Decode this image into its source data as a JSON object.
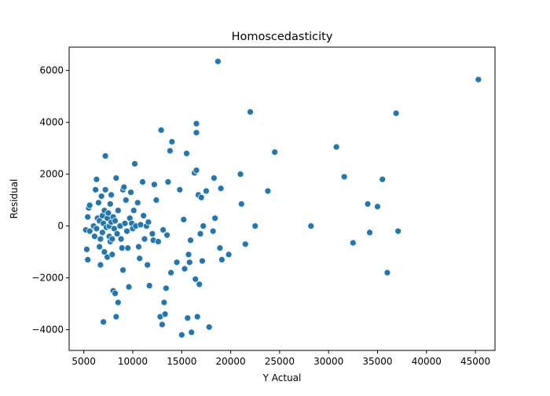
{
  "chart_data": {
    "type": "scatter",
    "title": "Homoscedasticity",
    "xlabel": "Y Actual",
    "ylabel": "Residual",
    "xlim": [
      3500,
      47000
    ],
    "ylim": [
      -4800,
      6900
    ],
    "xticks": [
      5000,
      10000,
      15000,
      20000,
      25000,
      30000,
      35000,
      40000,
      45000
    ],
    "yticks": [
      -4000,
      -2000,
      0,
      2000,
      4000,
      6000
    ],
    "grid": false,
    "legend": "none",
    "marker_color": "#1f77b4",
    "points": [
      [
        5200,
        -150
      ],
      [
        5300,
        -900
      ],
      [
        5400,
        -1300
      ],
      [
        5400,
        350
      ],
      [
        5500,
        700
      ],
      [
        5600,
        800
      ],
      [
        5600,
        -200
      ],
      [
        6000,
        0
      ],
      [
        6100,
        -400
      ],
      [
        6200,
        1400
      ],
      [
        6300,
        1800
      ],
      [
        6300,
        -100
      ],
      [
        6400,
        300
      ],
      [
        6500,
        900
      ],
      [
        6600,
        200
      ],
      [
        6600,
        -800
      ],
      [
        6700,
        -1500
      ],
      [
        6700,
        -500
      ],
      [
        6800,
        1150
      ],
      [
        6900,
        400
      ],
      [
        6900,
        -250
      ],
      [
        7000,
        -3700
      ],
      [
        7000,
        100
      ],
      [
        7100,
        600
      ],
      [
        7100,
        -1000
      ],
      [
        7200,
        1400
      ],
      [
        7200,
        2700
      ],
      [
        7300,
        -50
      ],
      [
        7400,
        300
      ],
      [
        7400,
        -1200
      ],
      [
        7500,
        500
      ],
      [
        7600,
        0
      ],
      [
        7600,
        -400
      ],
      [
        7700,
        850
      ],
      [
        7700,
        -600
      ],
      [
        7800,
        150
      ],
      [
        7800,
        1200
      ],
      [
        7900,
        -500
      ],
      [
        7900,
        -1100
      ],
      [
        8000,
        350
      ],
      [
        8000,
        -2500
      ],
      [
        8100,
        -100
      ],
      [
        8200,
        200
      ],
      [
        8200,
        -2600
      ],
      [
        8300,
        1850
      ],
      [
        8300,
        -3500
      ],
      [
        8400,
        -300
      ],
      [
        8500,
        600
      ],
      [
        8500,
        -2950
      ],
      [
        8700,
        0
      ],
      [
        8800,
        -500
      ],
      [
        8900,
        -850
      ],
      [
        9000,
        -1700
      ],
      [
        9000,
        1400
      ],
      [
        9100,
        1500
      ],
      [
        9200,
        100
      ],
      [
        9300,
        1000
      ],
      [
        9400,
        -200
      ],
      [
        9500,
        -850
      ],
      [
        9600,
        -2350
      ],
      [
        9700,
        300
      ],
      [
        9800,
        1300
      ],
      [
        9900,
        100
      ],
      [
        10000,
        -100
      ],
      [
        10100,
        600
      ],
      [
        10200,
        2400
      ],
      [
        10300,
        0
      ],
      [
        10500,
        900
      ],
      [
        10600,
        -800
      ],
      [
        10700,
        -1250
      ],
      [
        10800,
        50
      ],
      [
        11000,
        1700
      ],
      [
        11100,
        400
      ],
      [
        11200,
        -500
      ],
      [
        11400,
        0
      ],
      [
        11500,
        -1500
      ],
      [
        11600,
        150
      ],
      [
        11700,
        -2300
      ],
      [
        12000,
        -300
      ],
      [
        12100,
        -550
      ],
      [
        12200,
        1600
      ],
      [
        12400,
        1000
      ],
      [
        12600,
        -600
      ],
      [
        12800,
        -3500
      ],
      [
        12900,
        3700
      ],
      [
        13000,
        -3800
      ],
      [
        13100,
        -150
      ],
      [
        13200,
        -2950
      ],
      [
        13300,
        -3400
      ],
      [
        13400,
        -2400
      ],
      [
        13500,
        -350
      ],
      [
        13600,
        1700
      ],
      [
        13800,
        2900
      ],
      [
        13900,
        -1800
      ],
      [
        14000,
        3250
      ],
      [
        14500,
        -1400
      ],
      [
        14800,
        1400
      ],
      [
        15000,
        -4200
      ],
      [
        15200,
        250
      ],
      [
        15300,
        -1650
      ],
      [
        15500,
        2800
      ],
      [
        15600,
        -3550
      ],
      [
        15700,
        -1100
      ],
      [
        15800,
        -1400
      ],
      [
        15900,
        -550
      ],
      [
        16000,
        -4100
      ],
      [
        16300,
        2050
      ],
      [
        16400,
        -2050
      ],
      [
        16500,
        3600
      ],
      [
        16500,
        2150
      ],
      [
        16500,
        3950
      ],
      [
        16600,
        -3500
      ],
      [
        16700,
        1200
      ],
      [
        16800,
        -2250
      ],
      [
        16900,
        -300
      ],
      [
        17000,
        1100
      ],
      [
        17100,
        -1350
      ],
      [
        17200,
        0
      ],
      [
        17500,
        1350
      ],
      [
        17800,
        -3900
      ],
      [
        18200,
        -200
      ],
      [
        18300,
        1850
      ],
      [
        18400,
        300
      ],
      [
        18700,
        6350
      ],
      [
        18900,
        -850
      ],
      [
        19000,
        1450
      ],
      [
        19100,
        -1300
      ],
      [
        19800,
        -1100
      ],
      [
        21000,
        2000
      ],
      [
        21100,
        850
      ],
      [
        21500,
        -700
      ],
      [
        22000,
        4400
      ],
      [
        22500,
        0
      ],
      [
        23800,
        1350
      ],
      [
        24500,
        2850
      ],
      [
        28200,
        0
      ],
      [
        30800,
        3050
      ],
      [
        31600,
        1900
      ],
      [
        32500,
        -650
      ],
      [
        34000,
        850
      ],
      [
        34200,
        -250
      ],
      [
        35000,
        750
      ],
      [
        35500,
        1800
      ],
      [
        36000,
        -1800
      ],
      [
        36900,
        4350
      ],
      [
        37100,
        -200
      ],
      [
        45300,
        5650
      ]
    ]
  }
}
